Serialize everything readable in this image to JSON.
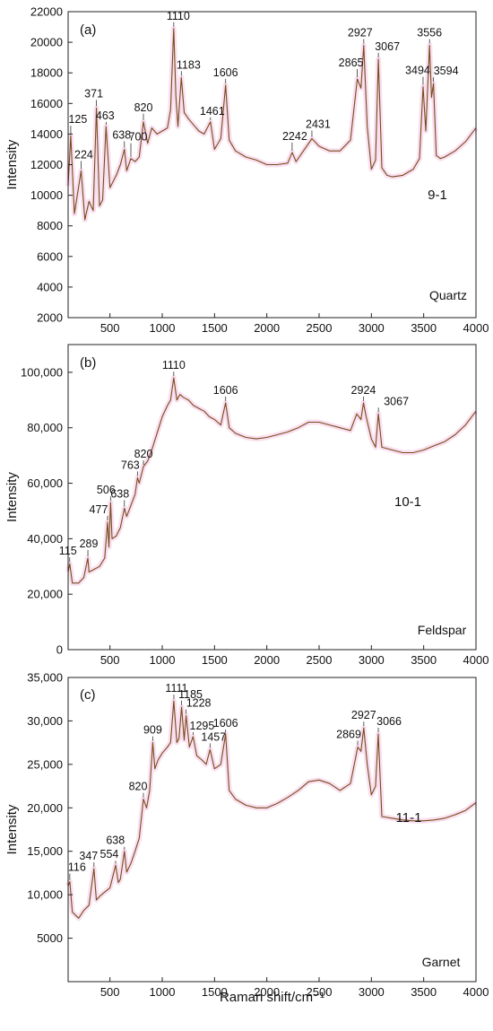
{
  "colors": {
    "spectrum": "#7a4a1c",
    "glow": "#f4c6e3"
  },
  "xlabel": "Raman shift/cm⁻¹",
  "chart_data": [
    {
      "type": "line",
      "panel": "(a)",
      "sample": "9-1",
      "mineral": "Quartz",
      "ylabel": "Intensity",
      "xlim": [
        100,
        4000
      ],
      "ylim": [
        2000,
        22000
      ],
      "xticks": [
        500,
        1000,
        1500,
        2000,
        2500,
        3000,
        3500,
        4000
      ],
      "xtick_labels": [
        "500",
        "1000",
        "1500",
        "2000",
        "2500",
        "3000",
        "3500",
        "4000"
      ],
      "yticks": [
        2000,
        4000,
        6000,
        8000,
        10000,
        12000,
        14000,
        16000,
        18000,
        20000,
        22000
      ],
      "ytick_labels": [
        "2000",
        "4000",
        "6000",
        "8000",
        "10000",
        "12000",
        "14000",
        "16000",
        "18000",
        "20000",
        "22000"
      ],
      "series": [
        {
          "x": [
            100,
            125,
            160,
            224,
            260,
            300,
            340,
            371,
            400,
            430,
            463,
            500,
            560,
            600,
            638,
            660,
            700,
            740,
            780,
            820,
            860,
            900,
            950,
            1000,
            1050,
            1080,
            1110,
            1130,
            1150,
            1183,
            1210,
            1250,
            1300,
            1350,
            1400,
            1461,
            1500,
            1560,
            1606,
            1640,
            1700,
            1800,
            1900,
            2000,
            2100,
            2200,
            2242,
            2280,
            2350,
            2431,
            2500,
            2600,
            2700,
            2800,
            2865,
            2900,
            2927,
            2960,
            3000,
            3040,
            3067,
            3100,
            3150,
            3200,
            3300,
            3400,
            3460,
            3494,
            3520,
            3556,
            3575,
            3594,
            3620,
            3660,
            3700,
            3800,
            3900,
            4000
          ],
          "y": [
            10600,
            13900,
            8800,
            11600,
            8400,
            9600,
            9000,
            15700,
            9300,
            9700,
            14500,
            10500,
            11300,
            12000,
            13000,
            11600,
            12400,
            12200,
            12500,
            14800,
            13400,
            14400,
            14000,
            14200,
            14400,
            15600,
            20900,
            16500,
            14500,
            17700,
            15400,
            15000,
            14600,
            14200,
            14000,
            14800,
            13000,
            13700,
            17200,
            13600,
            12900,
            12500,
            12300,
            12000,
            12000,
            12100,
            12800,
            12200,
            12900,
            13700,
            13200,
            12900,
            12900,
            13600,
            17600,
            17000,
            19800,
            14500,
            11700,
            12300,
            18900,
            11800,
            11300,
            11200,
            11300,
            11700,
            12400,
            17100,
            14200,
            19800,
            16400,
            17300,
            12600,
            12400,
            12500,
            12900,
            13500,
            14400
          ]
        }
      ],
      "peak_labels": [
        "125",
        "224",
        "371",
        "463",
        "638",
        "700",
        "820",
        "1110",
        "1183",
        "1461",
        "1606",
        "2242",
        "2431",
        "2865",
        "2927",
        "3067",
        "3494",
        "3556",
        "3594"
      ]
    },
    {
      "type": "line",
      "panel": "(b)",
      "sample": "10-1",
      "mineral": "Feldspar",
      "ylabel": "Intensity",
      "xlim": [
        100,
        4000
      ],
      "ylim": [
        0,
        110000
      ],
      "xticks": [
        500,
        1000,
        1500,
        2000,
        2500,
        3000,
        3500,
        4000
      ],
      "xtick_labels": [
        "500",
        "1000",
        "1500",
        "2000",
        "2500",
        "3000",
        "3500",
        "4000"
      ],
      "yticks": [
        0,
        20000,
        40000,
        60000,
        80000,
        100000
      ],
      "ytick_labels": [
        "0",
        "20,000",
        "40,000",
        "60,000",
        "80,000",
        "100,000"
      ],
      "series": [
        {
          "x": [
            100,
            115,
            140,
            200,
            250,
            289,
            300,
            350,
            400,
            450,
            477,
            490,
            506,
            520,
            560,
            600,
            638,
            660,
            700,
            740,
            763,
            780,
            820,
            860,
            900,
            950,
            1000,
            1050,
            1080,
            1110,
            1140,
            1170,
            1200,
            1250,
            1300,
            1350,
            1400,
            1450,
            1500,
            1560,
            1606,
            1640,
            1700,
            1800,
            1900,
            2000,
            2100,
            2200,
            2300,
            2400,
            2500,
            2600,
            2700,
            2800,
            2860,
            2900,
            2924,
            2950,
            3000,
            3040,
            3067,
            3100,
            3200,
            3300,
            3400,
            3500,
            3600,
            3700,
            3800,
            3900,
            4000
          ],
          "y": [
            28000,
            31000,
            24000,
            24000,
            26000,
            33000,
            28000,
            29000,
            30000,
            33000,
            46000,
            37000,
            53000,
            40000,
            41000,
            44000,
            51000,
            48000,
            52000,
            56000,
            62000,
            60000,
            66000,
            68000,
            72000,
            78000,
            84000,
            88000,
            90000,
            98000,
            90000,
            92000,
            91000,
            90000,
            88000,
            87000,
            86000,
            84000,
            83000,
            81000,
            89000,
            80000,
            78000,
            76500,
            76000,
            76500,
            77500,
            78500,
            80000,
            82000,
            82000,
            81000,
            80000,
            79000,
            85000,
            83000,
            89000,
            84000,
            76000,
            73000,
            85000,
            73000,
            72000,
            71000,
            71000,
            72000,
            73500,
            75000,
            77500,
            81000,
            86000
          ]
        }
      ],
      "peak_labels": [
        "115",
        "289",
        "477",
        "506",
        "638",
        "763",
        "820",
        "1110",
        "1606",
        "2924",
        "3067"
      ]
    },
    {
      "type": "line",
      "panel": "(c)",
      "sample": "11-1",
      "mineral": "Garnet",
      "ylabel": "Intensity",
      "xlim": [
        100,
        4000
      ],
      "ylim": [
        0,
        35000
      ],
      "xticks": [
        500,
        1000,
        1500,
        2000,
        2500,
        3000,
        3500,
        4000
      ],
      "xtick_labels": [
        "500",
        "1000",
        "1500",
        "2000",
        "2500",
        "3000",
        "3500",
        "4000"
      ],
      "yticks": [
        5000,
        10000,
        15000,
        20000,
        25000,
        30000,
        35000
      ],
      "ytick_labels": [
        "5000",
        "10,000",
        "15,000",
        "20,000",
        "25,000",
        "30,000",
        "35,000"
      ],
      "series": [
        {
          "x": [
            100,
            116,
            140,
            200,
            250,
            300,
            347,
            370,
            400,
            450,
            500,
            554,
            580,
            600,
            638,
            660,
            700,
            740,
            780,
            820,
            850,
            880,
            909,
            930,
            960,
            1000,
            1050,
            1080,
            1111,
            1140,
            1160,
            1185,
            1210,
            1228,
            1260,
            1295,
            1330,
            1380,
            1420,
            1457,
            1500,
            1560,
            1606,
            1640,
            1700,
            1800,
            1900,
            2000,
            2100,
            2200,
            2300,
            2400,
            2500,
            2600,
            2700,
            2800,
            2869,
            2900,
            2927,
            2960,
            3000,
            3040,
            3066,
            3100,
            3200,
            3300,
            3400,
            3500,
            3600,
            3700,
            3800,
            3900,
            4000
          ],
          "y": [
            11000,
            11500,
            8000,
            7300,
            8200,
            8800,
            13000,
            9400,
            9800,
            10300,
            10800,
            13400,
            11400,
            11800,
            15000,
            12600,
            13600,
            15000,
            16500,
            21000,
            20000,
            22000,
            27500,
            24500,
            25500,
            26300,
            27000,
            27500,
            32300,
            27500,
            28000,
            31600,
            27800,
            30600,
            27000,
            28200,
            26000,
            25500,
            25000,
            26700,
            24500,
            25000,
            28500,
            22000,
            21000,
            20300,
            20000,
            20000,
            20500,
            21200,
            22000,
            23000,
            23200,
            22800,
            22000,
            22800,
            27000,
            26500,
            29200,
            25000,
            21500,
            22500,
            28500,
            19000,
            18800,
            18600,
            18500,
            18500,
            18600,
            18800,
            19200,
            19700,
            20600
          ]
        }
      ],
      "peak_labels": [
        "116",
        "347",
        "554",
        "638",
        "820",
        "909",
        "1111",
        "1185",
        "1228",
        "1295",
        "1457",
        "1606",
        "2869",
        "2927",
        "3066"
      ]
    }
  ]
}
